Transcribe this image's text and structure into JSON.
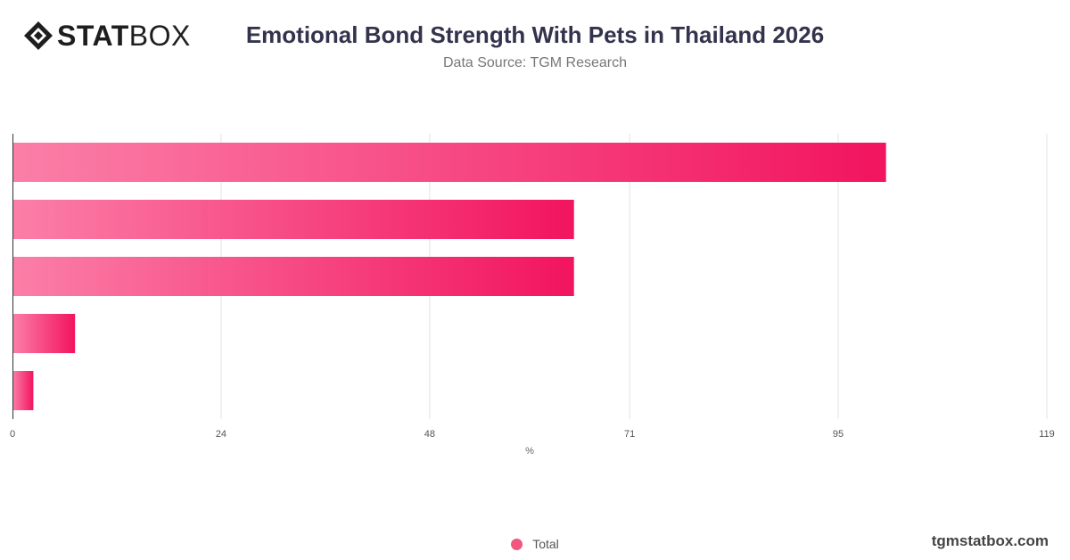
{
  "brand": {
    "logo_bold": "STAT",
    "logo_light": "BOX",
    "footer_url": "tgmstatbox.com"
  },
  "chart_data": {
    "type": "bar",
    "orientation": "horizontal",
    "title": "Emotional Bond Strength With Pets in Thailand 2026",
    "subtitle": "Data Source: TGM Research",
    "xlabel": "%",
    "ylabel": "",
    "xlim": [
      0,
      119
    ],
    "x_ticks": [
      0,
      24,
      48,
      71,
      95,
      119
    ],
    "category_labels_visible": false,
    "series": [
      {
        "name": "Total",
        "values": [
          100.5,
          64.6,
          64.6,
          7.2,
          2.4
        ]
      }
    ],
    "colors": {
      "bar_start": "#fb7fa8",
      "bar_end": "#f2145f",
      "legend_marker": "#f0567f"
    },
    "grid": true,
    "legend_position": "bottom-center"
  }
}
